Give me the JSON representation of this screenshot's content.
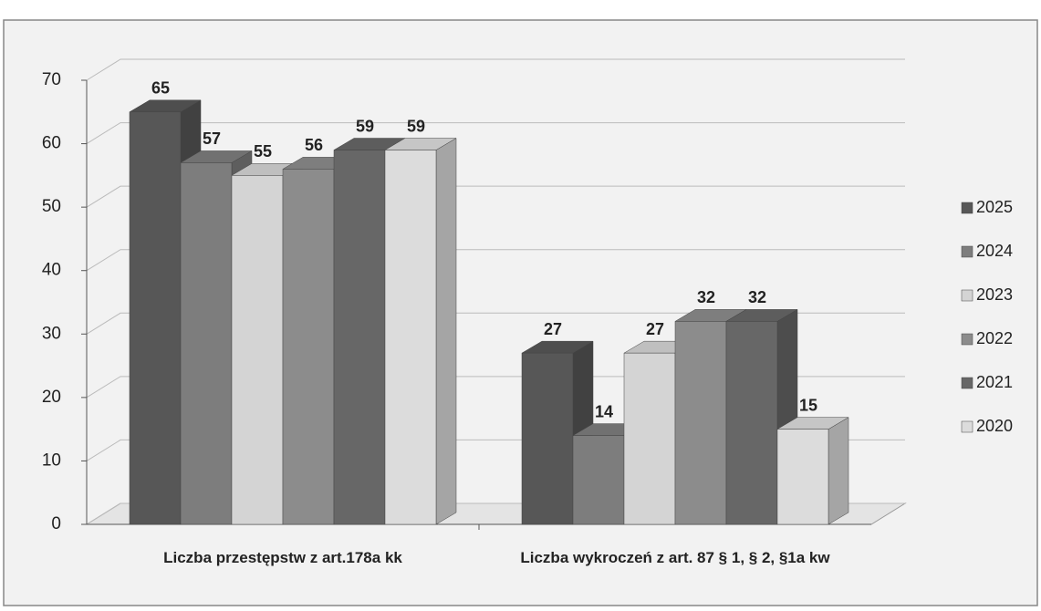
{
  "chart_data": {
    "type": "bar3d",
    "categories": [
      "Liczba przestępstw z art.178a kk",
      "Liczba wykroczeń z art. 87 § 1, § 2, §1a kw"
    ],
    "series": [
      {
        "name": "2025",
        "color": "#575757",
        "values": [
          65,
          27
        ]
      },
      {
        "name": "2024",
        "color": "#7d7d7d",
        "values": [
          57,
          14
        ]
      },
      {
        "name": "2023",
        "color": "#d4d4d4",
        "values": [
          55,
          27
        ]
      },
      {
        "name": "2022",
        "color": "#8c8c8c",
        "values": [
          56,
          32
        ]
      },
      {
        "name": "2021",
        "color": "#676767",
        "values": [
          59,
          32
        ]
      },
      {
        "name": "2020",
        "color": "#dcdcdc",
        "values": [
          59,
          15
        ]
      }
    ],
    "ylim": [
      0,
      70
    ],
    "yticks": [
      0,
      10,
      20,
      30,
      40,
      50,
      60,
      70
    ],
    "grid": true,
    "legend": "right"
  }
}
